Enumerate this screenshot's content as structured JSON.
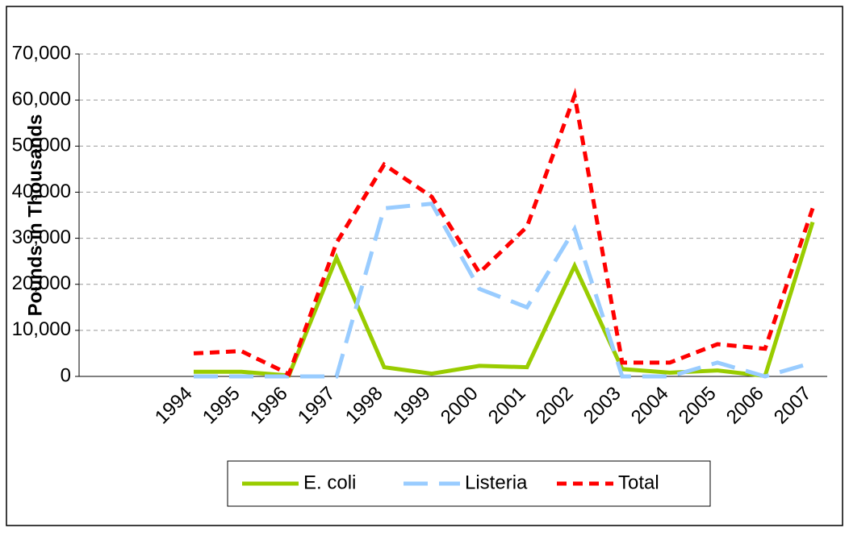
{
  "chart_data": {
    "type": "line",
    "ylabel": "Pounds in Thousands",
    "categories": [
      "1994",
      "1995",
      "1996",
      "1997",
      "1998",
      "1999",
      "2000",
      "2001",
      "2002",
      "2003",
      "2004",
      "2005",
      "2006",
      "2007"
    ],
    "series": [
      {
        "name": "E. coli",
        "color": "#99cc00",
        "dash": "solid",
        "values": [
          1000,
          1000,
          200,
          25800,
          2000,
          600,
          2300,
          2000,
          24000,
          1600,
          800,
          1300,
          100,
          33500
        ]
      },
      {
        "name": "Listeria",
        "color": "#99ccff",
        "dash": "long",
        "values": [
          0,
          0,
          0,
          0,
          36500,
          37500,
          19000,
          15000,
          32000,
          0,
          0,
          3000,
          0,
          3000
        ]
      },
      {
        "name": "Total",
        "color": "#ff0000",
        "dash": "short",
        "values": [
          5000,
          5500,
          500,
          29000,
          46000,
          39000,
          22500,
          32500,
          61000,
          3000,
          3000,
          7000,
          6000,
          36500
        ]
      }
    ],
    "ylim": [
      0,
      70000
    ],
    "yticks": [
      0,
      {
        "value": 10000,
        "label": "10,000"
      },
      {
        "value": 20000,
        "label": "20,000"
      },
      {
        "value": 30000,
        "label": "30,000"
      },
      {
        "value": 40000,
        "label": "40,000"
      },
      {
        "value": 50000,
        "label": "50,000"
      },
      {
        "value": 60000,
        "label": "60,000"
      },
      {
        "value": 70000,
        "label": "70,000"
      }
    ],
    "grid": true,
    "legend": "bottom"
  }
}
